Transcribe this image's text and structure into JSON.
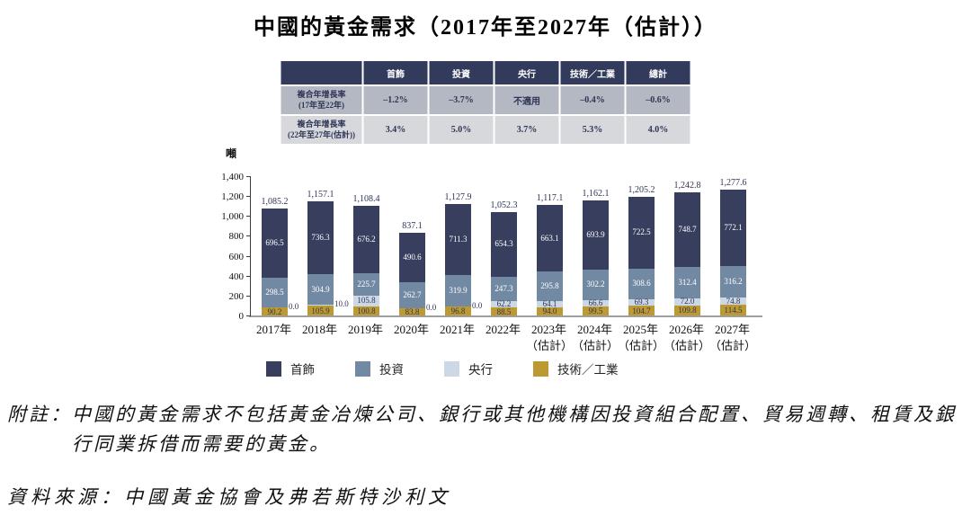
{
  "title": "中國的黃金需求（2017年至2027年（估計））",
  "cagr_table": {
    "columns": [
      "",
      "首飾",
      "投資",
      "央行",
      "技術／工業",
      "總計"
    ],
    "rows": [
      {
        "label_line1": "複合年增長率",
        "label_line2": "(17年至22年)",
        "values": [
          "–1.2%",
          "–3.7%",
          "不適用",
          "–0.4%",
          "–0.6%"
        ]
      },
      {
        "label_line1": "複合年增長率",
        "label_line2": "(22年至27年(估計))",
        "values": [
          "3.4%",
          "5.0%",
          "3.7%",
          "5.3%",
          "4.0%"
        ]
      }
    ]
  },
  "chart_data": {
    "type": "bar",
    "stacked": true,
    "title": "中國的黃金需求（2017年至2027年（估計））",
    "xlabel": "",
    "ylabel": "噸",
    "ylim": [
      0,
      1400
    ],
    "yticks": [
      "0",
      "200",
      "400",
      "600",
      "800",
      "1,000",
      "1,200",
      "1,400"
    ],
    "grid": false,
    "legend_position": "bottom",
    "categories": [
      "2017年",
      "2018年",
      "2019年",
      "2020年",
      "2021年",
      "2022年",
      "2023年\n（估計）",
      "2024年\n（估計）",
      "2025年\n（估計）",
      "2026年\n（估計）",
      "2027年\n（估計）"
    ],
    "series": [
      {
        "name": "首飾",
        "color": "#383e5e",
        "values": [
          696.5,
          736.3,
          676.2,
          490.6,
          711.3,
          654.3,
          663.1,
          693.9,
          722.5,
          748.7,
          772.1
        ]
      },
      {
        "name": "投資",
        "color": "#7289a3",
        "values": [
          298.5,
          304.9,
          225.7,
          262.7,
          319.9,
          247.3,
          295.8,
          302.2,
          308.6,
          312.4,
          316.2
        ]
      },
      {
        "name": "央行",
        "color": "#ccd8e6",
        "values": [
          0.0,
          10.0,
          105.8,
          0.0,
          0.0,
          62.2,
          64.1,
          66.6,
          69.3,
          72.0,
          74.8
        ]
      },
      {
        "name": "技術／工業",
        "color": "#bd9a31",
        "values": [
          90.2,
          105.9,
          100.8,
          83.8,
          96.8,
          88.5,
          94.0,
          99.5,
          104.7,
          109.8,
          114.5
        ]
      }
    ],
    "totals": [
      1085.2,
      1157.1,
      1108.4,
      837.1,
      1127.9,
      1052.3,
      1117.1,
      1162.1,
      1205.2,
      1242.8,
      1277.6
    ]
  },
  "colors": {
    "table_header_bg": "#333b5c",
    "table_row1_bg": "#b4b8c2",
    "table_row2_bg": "#d6d8dc",
    "label_on_dark": "#ffffff",
    "label_on_light": "#2e3455",
    "baseline": "#9e9e9e"
  },
  "notes": {
    "label": "附註：",
    "text": "中國的黃金需求不包括黃金冶煉公司、銀行或其他機構因投資組合配置、貿易週轉、租賃及銀行同業拆借而需要的黃金。"
  },
  "source": "資料來源：中國黃金協會及弗若斯特沙利文"
}
